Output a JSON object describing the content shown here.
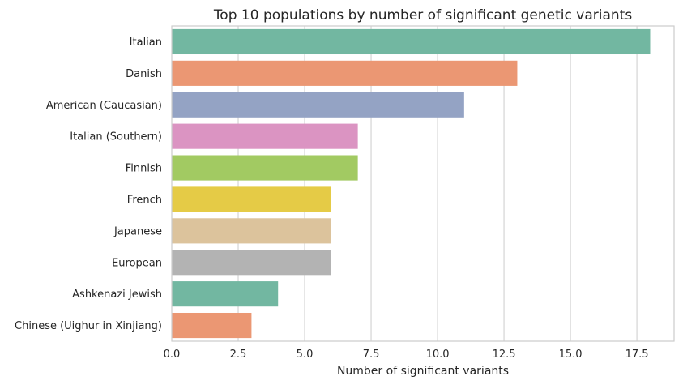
{
  "chart_data": {
    "type": "bar",
    "orientation": "horizontal",
    "title": "Top 10 populations by number of significant genetic variants",
    "xlabel": "Number of significant variants",
    "ylabel": "",
    "xlim": [
      0,
      18.9
    ],
    "xticks": [
      0,
      2.5,
      5,
      7.5,
      10,
      12.5,
      15,
      17.5
    ],
    "xtick_labels": [
      "0.0",
      "2.5",
      "5.0",
      "7.5",
      "10.0",
      "12.5",
      "15.0",
      "17.5"
    ],
    "grid": true,
    "categories": [
      "Italian",
      "Danish",
      "American (Caucasian)",
      "Italian (Southern)",
      "Finnish",
      "French",
      "Japanese",
      "European",
      "Ashkenazi Jewish",
      "Chinese (Uighur in Xinjiang)"
    ],
    "values": [
      18,
      13,
      11,
      7,
      7,
      6,
      6,
      6,
      4,
      3
    ],
    "colors": [
      "#72b7a1",
      "#eb9773",
      "#94a3c4",
      "#db94c2",
      "#a2ca62",
      "#e5cb46",
      "#dcc39c",
      "#b3b3b3",
      "#72b7a1",
      "#eb9773"
    ]
  }
}
